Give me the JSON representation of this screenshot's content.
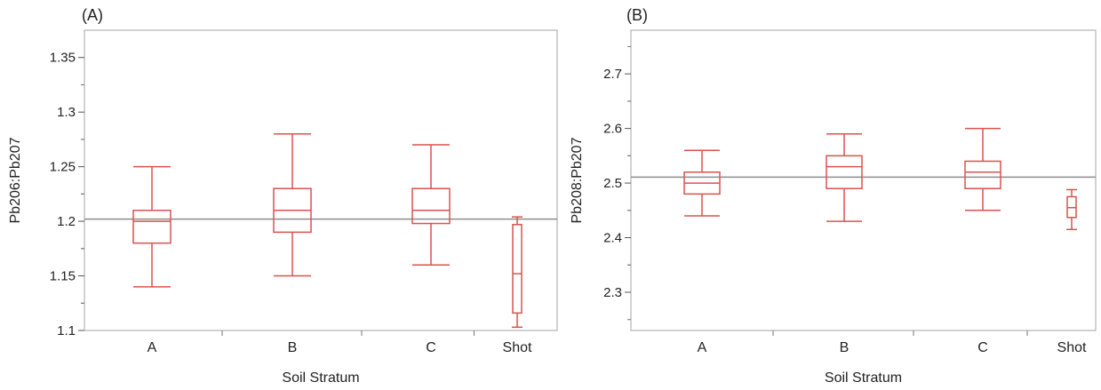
{
  "chart_data": [
    {
      "type": "box",
      "panel_label": "(A)",
      "xlabel": "Soil Stratum",
      "ylabel": "Pb206:Pb207",
      "categories": [
        "A",
        "B",
        "C",
        "Shot"
      ],
      "ylim": [
        1.1,
        1.375
      ],
      "yticks": [
        "1.1",
        "1.15",
        "1.2",
        "1.25",
        "1.3",
        "1.35"
      ],
      "reference_line": 1.202,
      "colors": {
        "box": "#d9534f",
        "reference": "#8c8c8c",
        "frame": "#a6a6a6"
      },
      "boxes": [
        {
          "category": "A",
          "min": 1.14,
          "q1": 1.18,
          "median": 1.2,
          "q3": 1.21,
          "max": 1.25
        },
        {
          "category": "B",
          "min": 1.15,
          "q1": 1.19,
          "median": 1.21,
          "q3": 1.23,
          "max": 1.28
        },
        {
          "category": "C",
          "min": 1.16,
          "q1": 1.198,
          "median": 1.21,
          "q3": 1.23,
          "max": 1.27
        },
        {
          "category": "Shot",
          "min": 1.103,
          "q1": 1.116,
          "median": 1.152,
          "q3": 1.197,
          "max": 1.204
        }
      ]
    },
    {
      "type": "box",
      "panel_label": "(B)",
      "xlabel": "Soil Stratum",
      "ylabel": "Pb208:Pb207",
      "categories": [
        "A",
        "B",
        "C",
        "Shot"
      ],
      "ylim": [
        2.23,
        2.78
      ],
      "yticks": [
        "2.3",
        "2.4",
        "2.5",
        "2.6",
        "2.7"
      ],
      "reference_line": 2.511,
      "colors": {
        "box": "#d9534f",
        "reference": "#8c8c8c",
        "frame": "#a6a6a6"
      },
      "boxes": [
        {
          "category": "A",
          "min": 2.44,
          "q1": 2.48,
          "median": 2.5,
          "q3": 2.52,
          "max": 2.56
        },
        {
          "category": "B",
          "min": 2.43,
          "q1": 2.49,
          "median": 2.53,
          "q3": 2.55,
          "max": 2.59
        },
        {
          "category": "C",
          "min": 2.45,
          "q1": 2.49,
          "median": 2.52,
          "q3": 2.54,
          "max": 2.6
        },
        {
          "category": "Shot",
          "min": 2.415,
          "q1": 2.437,
          "median": 2.455,
          "q3": 2.475,
          "max": 2.488
        }
      ]
    }
  ]
}
